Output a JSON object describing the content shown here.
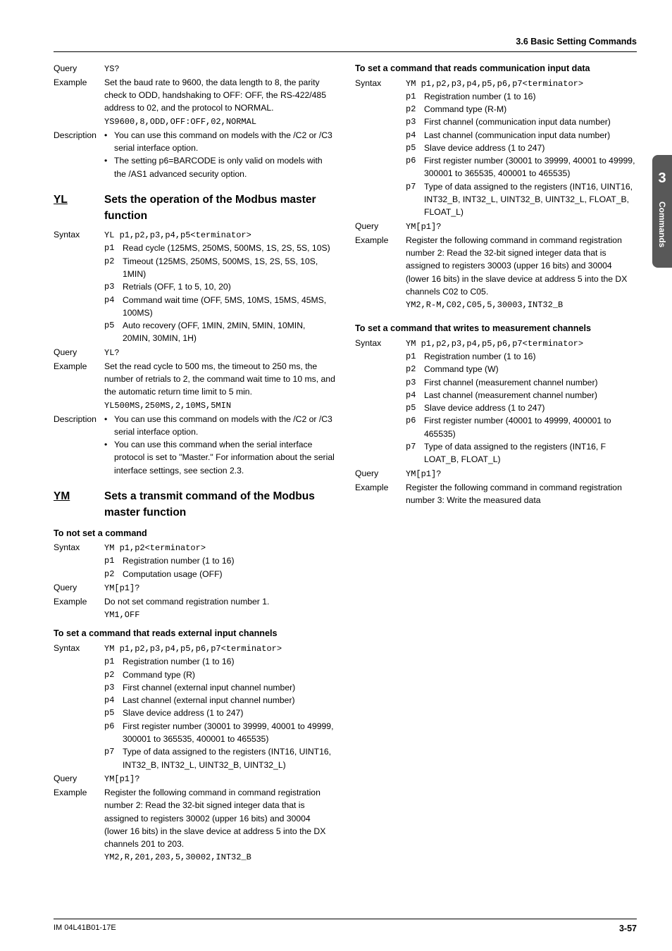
{
  "running_head": "3.6  Basic Setting Commands",
  "tab": {
    "num": "3",
    "text": "Commands"
  },
  "footer": {
    "left": "IM 04L41B01-17E",
    "right": "3-57"
  },
  "ys_query_label": "Query",
  "ys_query_val": "YS?",
  "ys_example_label": "Example",
  "ys_example_text": "Set the baud rate to 9600, the data length to 8, the parity check to ODD, handshaking to OFF: OFF, the RS-422/485 address to 02, and the protocol to NORMAL.",
  "ys_example_code": "YS9600,8,ODD,OFF:OFF,02,NORMAL",
  "ys_desc_label": "Description",
  "ys_desc_b1": "You can use this command on models with the /C2 or /C3 serial interface option.",
  "ys_desc_b2": "The setting p6=BARCODE is only valid on models with the /AS1 advanced security option.",
  "yl_abbr": "YL",
  "yl_title": "Sets the operation of the Modbus master function",
  "yl_syntax_label": "Syntax",
  "yl_syntax_code": "YL p1,p2,p3,p4,p5<terminator>",
  "yl_p1": "Read cycle (125MS, 250MS, 500MS, 1S, 2S, 5S, 10S)",
  "yl_p2": "Timeout (125MS, 250MS, 500MS, 1S, 2S, 5S, 10S, 1MIN)",
  "yl_p3": "Retrials (OFF, 1 to 5, 10, 20)",
  "yl_p4": "Command wait time (OFF, 5MS, 10MS, 15MS, 45MS, 100MS)",
  "yl_p5": "Auto recovery (OFF, 1MIN, 2MIN, 5MIN, 10MIN, 20MIN, 30MIN, 1H)",
  "yl_query_label": "Query",
  "yl_query_val": "YL?",
  "yl_example_label": "Example",
  "yl_example_text": "Set the read cycle to 500 ms, the timeout to 250 ms, the number of retrials to 2, the command wait time to 10 ms, and the automatic return time limit to 5 min.",
  "yl_example_code": "YL500MS,250MS,2,10MS,5MIN",
  "yl_desc_label": "Description",
  "yl_desc_b1": "You can use this command on models with the /C2 or /C3 serial interface option.",
  "yl_desc_b2": "You can use this command when the serial interface protocol is set to \"Master.\" For information about the serial interface settings, see section 2.3.",
  "ym_abbr": "YM",
  "ym_title": "Sets a transmit command of the Modbus master function",
  "ym_s1_head": "To not set a command",
  "ym_s1_syntax_label": "Syntax",
  "ym_s1_syntax_code": "YM p1,p2<terminator>",
  "ym_s1_p1": "Registration number (1 to 16)",
  "ym_s1_p2": "Computation usage (OFF)",
  "ym_s1_query_label": "Query",
  "ym_s1_query_val": "YM[p1]?",
  "ym_s1_example_label": "Example",
  "ym_s1_example_text": "Do not set command registration number 1.",
  "ym_s1_example_code": "YM1,OFF",
  "ym_s2_head": "To set a command that reads external input channels",
  "ym_s2_syntax_label": "Syntax",
  "ym_s2_syntax_code": "YM p1,p2,p3,p4,p5,p6,p7<terminator>",
  "ym_s2_p1": "Registration number (1 to 16)",
  "ym_s2_p2": "Command type (R)",
  "ym_s2_p3": "First channel (external input channel number)",
  "ym_s2_p4": "Last channel (external input channel number)",
  "ym_s2_p5": "Slave device address (1 to 247)",
  "ym_s2_p6": "First register number (30001 to 39999, 40001 to 49999, 300001 to 365535, 400001 to 465535)",
  "ym_s2_p7": "Type of data assigned to the registers (INT16, UINT16, INT32_B, INT32_L, UINT32_B, UINT32_L)",
  "ym_s2_query_label": "Query",
  "ym_s2_query_val": "YM[p1]?",
  "ym_s2_example_label": "Example",
  "ym_s2_example_text": "Register the following command in command registration number 2: Read the 32-bit signed integer data that is assigned to registers 30002 (upper 16 bits) and 30004 (lower 16 bits) in the slave device at address 5 into the DX channels 201 to 203.",
  "ym_s2_example_code": "YM2,R,201,203,5,30002,INT32_B",
  "ym_s3_head": "To set a command that reads communication input data",
  "ym_s3_syntax_label": "Syntax",
  "ym_s3_syntax_code": "YM p1,p2,p3,p4,p5,p6,p7<terminator>",
  "ym_s3_p1": "Registration number (1 to 16)",
  "ym_s3_p2": "Command type (R-M)",
  "ym_s3_p3": "First channel (communication input data number)",
  "ym_s3_p4": "Last channel (communication input data number)",
  "ym_s3_p5": "Slave device address (1 to 247)",
  "ym_s3_p6": "First register number (30001 to 39999, 40001 to 49999, 300001 to 365535, 400001 to 465535)",
  "ym_s3_p7": "Type of data assigned to the registers (INT16, UINT16, INT32_B, INT32_L, UINT32_B, UINT32_L, FLOAT_B, FLOAT_L)",
  "ym_s3_query_label": "Query",
  "ym_s3_query_val": "YM[p1]?",
  "ym_s3_example_label": "Example",
  "ym_s3_example_text": "Register the following command in command registration number 2: Read the 32-bit signed integer data that is assigned to registers 30003 (upper 16 bits) and 30004 (lower 16 bits) in the slave device at address 5 into the DX channels C02 to C05.",
  "ym_s3_example_code": "YM2,R-M,C02,C05,5,30003,INT32_B",
  "ym_s4_head": "To set a command that writes to measurement channels",
  "ym_s4_syntax_label": "Syntax",
  "ym_s4_syntax_code": "YM p1,p2,p3,p4,p5,p6,p7<terminator>",
  "ym_s4_p1": "Registration number (1 to 16)",
  "ym_s4_p2": "Command type (W)",
  "ym_s4_p3": "First channel (measurement channel number)",
  "ym_s4_p4": "Last channel (measurement channel number)",
  "ym_s4_p5": "Slave device address (1 to 247)",
  "ym_s4_p6": "First register number (40001 to 49999, 400001 to 465535)",
  "ym_s4_p7": "Type of data assigned to the registers (INT16, F LOAT_B, FLOAT_L)",
  "ym_s4_query_label": "Query",
  "ym_s4_query_val": "YM[p1]?",
  "ym_s4_example_label": "Example",
  "ym_s4_example_text": "Register the following command in command registration number 3: Write the measured data"
}
